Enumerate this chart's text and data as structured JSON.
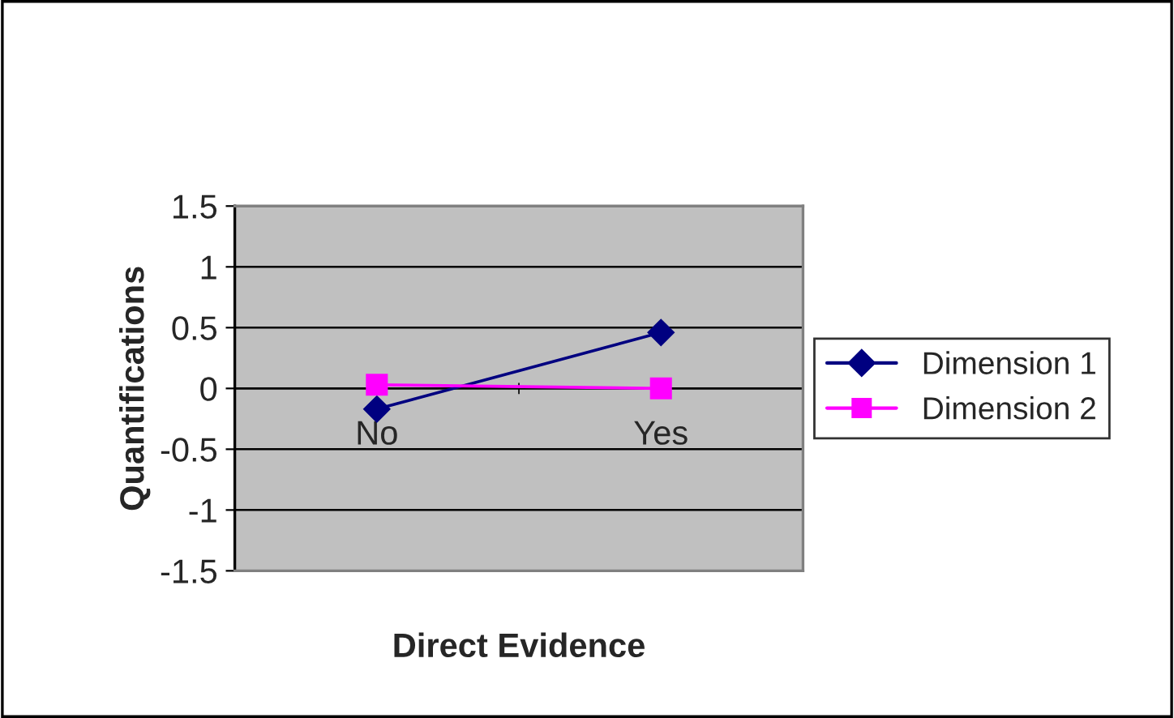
{
  "chart_data": {
    "type": "line",
    "xlabel": "Direct Evidence",
    "ylabel": "Quantifications",
    "categories": [
      "No",
      "Yes"
    ],
    "series": [
      {
        "name": "Dimension 1",
        "color": "#000080",
        "marker": "diamond",
        "values": [
          -0.17,
          0.46
        ]
      },
      {
        "name": "Dimension 2",
        "color": "#ff00ff",
        "marker": "square",
        "values": [
          0.03,
          0.0
        ]
      }
    ],
    "ylim": [
      -1.5,
      1.5
    ],
    "yticks": [
      -1.5,
      -1,
      -0.5,
      0,
      0.5,
      1,
      1.5
    ],
    "grid": "y",
    "legend": "right"
  }
}
